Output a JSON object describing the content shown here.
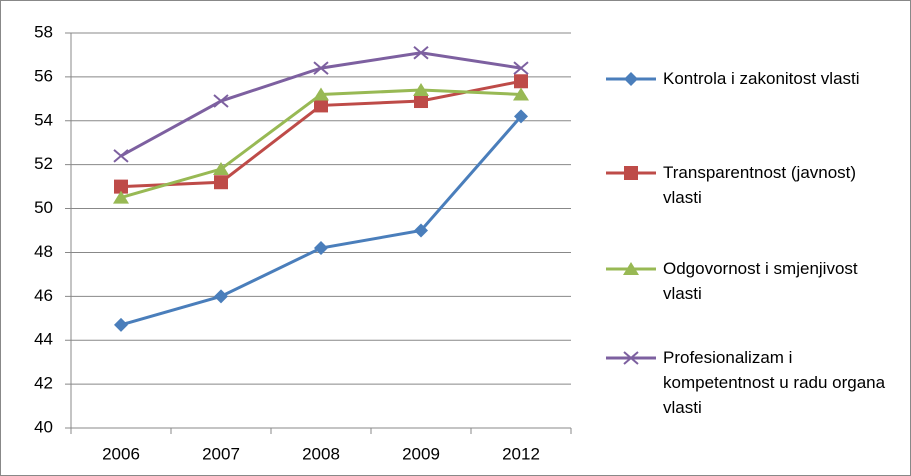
{
  "chart_data": {
    "type": "line",
    "categories": [
      "2006",
      "2007",
      "2008",
      "2009",
      "2012"
    ],
    "series": [
      {
        "name": "Kontrola i zakonitost vlasti",
        "color": "#4a7ebb",
        "marker": "diamond",
        "values": [
          44.7,
          46.0,
          48.2,
          49.0,
          54.2
        ]
      },
      {
        "name": "Transparentnost (javnost) vlasti",
        "color": "#be4b48",
        "marker": "square",
        "values": [
          51.0,
          51.2,
          54.7,
          54.9,
          55.8
        ]
      },
      {
        "name": "Odgovornost i smjenjivost vlasti",
        "color": "#98b954",
        "marker": "triangle",
        "values": [
          50.5,
          51.8,
          55.2,
          55.4,
          55.2
        ]
      },
      {
        "name": "Profesionalizam i kompetentnost u radu organa vlasti",
        "color": "#7d60a0",
        "marker": "x",
        "values": [
          52.4,
          54.9,
          56.4,
          57.1,
          56.4
        ]
      }
    ],
    "ylim": [
      40,
      58
    ],
    "yticks": [
      40,
      42,
      44,
      46,
      48,
      50,
      52,
      54,
      56,
      58
    ],
    "grid": true,
    "legend": "right"
  }
}
